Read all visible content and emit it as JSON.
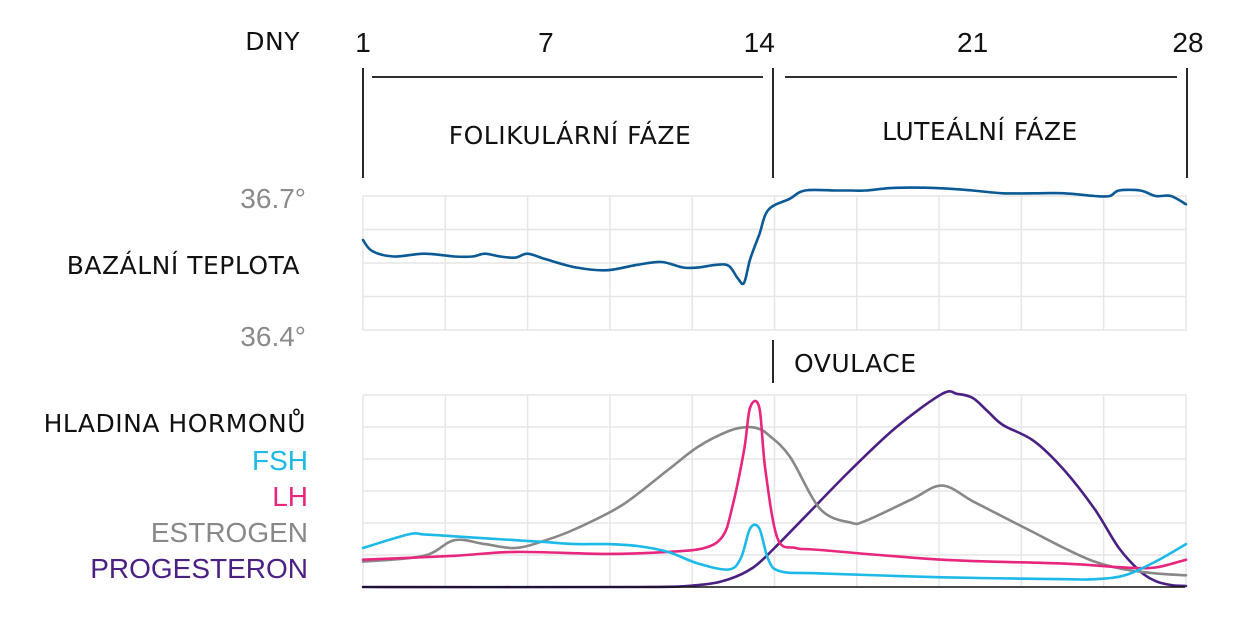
{
  "chart_data": [
    {
      "type": "line",
      "title": "",
      "row_label": "BAZÁLNÍ TEPLOTA",
      "x_axis_label": "DNY",
      "x_ticks": [
        "1",
        "7",
        "14",
        "21",
        "28"
      ],
      "phases": [
        "FOLIKULÁRNÍ FÁZE",
        "LUTEÁLNÍ FÁZE"
      ],
      "y_tick_top": "36.7°",
      "y_tick_bottom": "36.4°",
      "ylim": [
        36.4,
        36.7
      ],
      "color": "#0b5a95",
      "x": [
        1,
        1.3,
        2,
        3,
        4,
        4.6,
        5,
        5.5,
        6,
        6.4,
        7,
        8,
        9,
        10,
        10.8,
        11.5,
        12,
        12.6,
        13,
        13.3,
        13.5,
        13.7,
        14,
        14.3,
        15,
        15.5,
        16.5,
        17,
        17.5,
        18.5,
        20,
        21,
        22,
        23,
        24,
        25,
        25.5,
        25.8,
        26.5,
        27,
        27.5,
        28
      ],
      "y": [
        36.6,
        36.58,
        36.57,
        36.575,
        36.57,
        36.57,
        36.575,
        36.57,
        36.568,
        36.575,
        36.565,
        36.55,
        36.545,
        36.555,
        36.56,
        36.55,
        36.55,
        36.555,
        36.553,
        36.53,
        36.522,
        36.565,
        36.61,
        36.655,
        36.675,
        36.69,
        36.69,
        36.69,
        36.69,
        36.695,
        36.694,
        36.69,
        36.685,
        36.685,
        36.685,
        36.68,
        36.68,
        36.69,
        36.69,
        36.68,
        36.68,
        36.665
      ],
      "annotation": "OVULACE",
      "annotation_day": 14
    },
    {
      "type": "line",
      "title": "",
      "row_label": "HLADINA HORMONŮ",
      "ylim": [
        0,
        100
      ],
      "series": [
        {
          "name": "FSH",
          "color": "#1db9e8",
          "x": [
            1,
            2.5,
            3,
            4,
            5,
            6,
            7,
            8,
            9,
            10,
            11,
            12,
            13,
            13.4,
            13.7,
            14,
            14.3,
            14.7,
            16,
            20,
            24,
            25,
            26,
            27,
            28
          ],
          "y": [
            20,
            27,
            27,
            26,
            25,
            24,
            23,
            22,
            22,
            21,
            18,
            12,
            9,
            15,
            30,
            30,
            14,
            8,
            7,
            5,
            4,
            4,
            6,
            13,
            22
          ]
        },
        {
          "name": "LH",
          "color": "#e8267e",
          "x": [
            1,
            4,
            6,
            9,
            11,
            12.2,
            12.8,
            13.1,
            13.5,
            13.7,
            14,
            14.2,
            14.6,
            15.2,
            16,
            20,
            24,
            26,
            27,
            28
          ],
          "y": [
            14,
            16,
            18,
            17,
            18,
            20,
            26,
            40,
            70,
            92,
            92,
            60,
            25,
            20,
            19,
            14,
            12,
            10,
            10,
            14
          ]
        },
        {
          "name": "ESTROGEN",
          "color": "#888888",
          "x": [
            1,
            3,
            4,
            5,
            6,
            7,
            8,
            9.5,
            11,
            12,
            13,
            13.6,
            14,
            14.3,
            15,
            16,
            17,
            17.5,
            19,
            20,
            21,
            22,
            23,
            24,
            25,
            26,
            27,
            28
          ],
          "y": [
            13,
            16,
            24,
            22,
            20,
            24,
            30,
            42,
            60,
            72,
            80,
            82,
            81,
            78,
            67,
            40,
            33,
            34,
            45,
            52,
            44,
            36,
            28,
            20,
            13,
            9,
            7,
            6
          ]
        },
        {
          "name": "PROGESTERON",
          "color": "#4b2083",
          "x": [
            1,
            10,
            12,
            13,
            13.8,
            14.5,
            15.5,
            17,
            18.5,
            20,
            20.5,
            21,
            21.5,
            22,
            23,
            24,
            25,
            25.8,
            26.5,
            27,
            27.5,
            28
          ],
          "y": [
            0,
            0,
            1,
            4,
            10,
            20,
            36,
            60,
            82,
            99,
            99,
            97,
            90,
            83,
            75,
            60,
            40,
            20,
            8,
            3,
            1,
            0.5
          ]
        }
      ]
    }
  ]
}
